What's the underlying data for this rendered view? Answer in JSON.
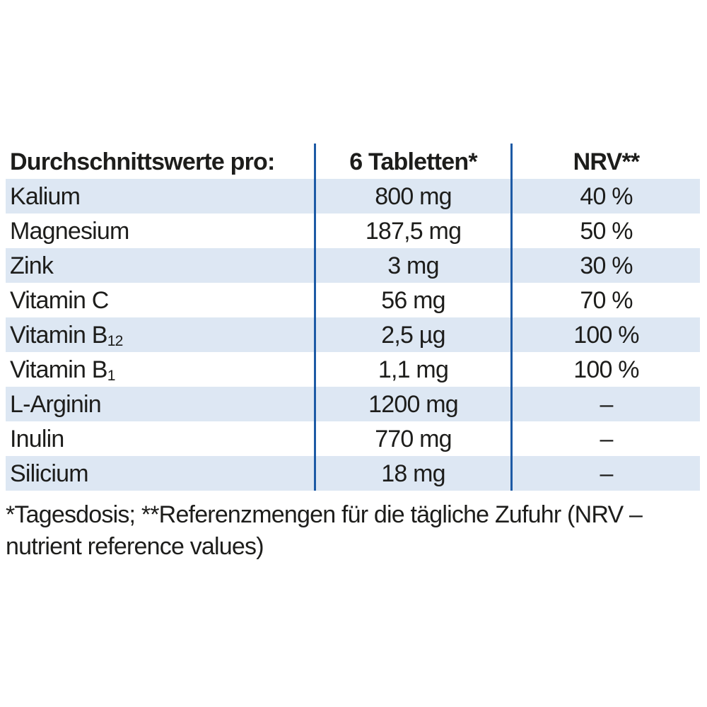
{
  "colors": {
    "stripe": "#dde7f3",
    "divider": "#1d5aa5",
    "text": "#1d1d1b"
  },
  "table": {
    "header": {
      "col1": "Durchschnittswerte pro:",
      "col2": "6 Tabletten*",
      "col3": "NRV**"
    },
    "rows": [
      {
        "name": "Kalium",
        "sub": "",
        "amount": "800 mg",
        "nrv": "40 %"
      },
      {
        "name": "Magnesium",
        "sub": "",
        "amount": "187,5 mg",
        "nrv": "50 %"
      },
      {
        "name": "Zink",
        "sub": "",
        "amount": "3 mg",
        "nrv": "30 %"
      },
      {
        "name": "Vitamin C",
        "sub": "",
        "amount": "56 mg",
        "nrv": "70 %"
      },
      {
        "name": "Vitamin B",
        "sub": "12",
        "amount": "2,5 µg",
        "nrv": "100 %"
      },
      {
        "name": "Vitamin B",
        "sub": "1",
        "amount": "1,1 mg",
        "nrv": "100 %"
      },
      {
        "name": "L-Arginin",
        "sub": "",
        "amount": "1200 mg",
        "nrv": "–"
      },
      {
        "name": "Inulin",
        "sub": "",
        "amount": "770 mg",
        "nrv": "–"
      },
      {
        "name": "Silicium",
        "sub": "",
        "amount": "18 mg",
        "nrv": "–"
      }
    ]
  },
  "footnote": {
    "line1": "*Tagesdosis; **Referenzmengen für die tägliche Zufuhr (NRV –",
    "line2": "nutrient reference values)"
  }
}
